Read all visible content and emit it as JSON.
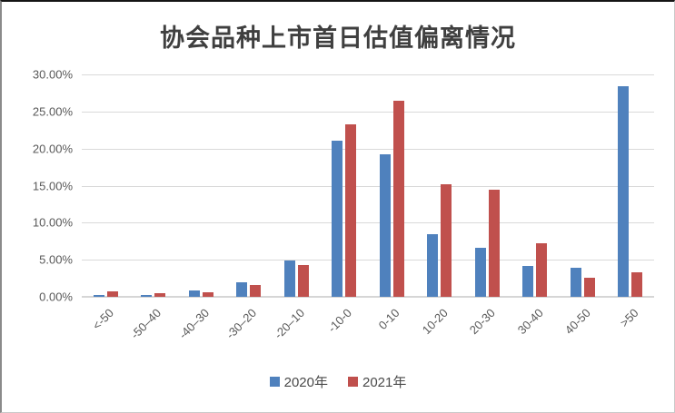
{
  "chart_data": {
    "type": "bar",
    "title": "协会品种上市首日估值偏离情况",
    "categories": [
      "<-50",
      "-50–40",
      "-40–30",
      "-30–20",
      "-20–10",
      "-10-0",
      "0-10",
      "10-20",
      "20-30",
      "30-40",
      "40-50",
      ">50"
    ],
    "series": [
      {
        "name": "2020年",
        "color": "#4F81BD",
        "values": [
          0.3,
          0.3,
          0.9,
          1.9,
          4.9,
          21.1,
          19.2,
          8.4,
          6.6,
          4.2,
          3.9,
          28.4
        ]
      },
      {
        "name": "2021年",
        "color": "#C0504D",
        "values": [
          0.7,
          0.5,
          0.6,
          1.6,
          4.3,
          23.3,
          26.4,
          15.2,
          14.5,
          7.2,
          2.6,
          3.3
        ]
      }
    ],
    "ylim": [
      0,
      30
    ],
    "ytick_step": 5,
    "ytick_labels": [
      "0.00%",
      "5.00%",
      "10.00%",
      "15.00%",
      "20.00%",
      "25.00%",
      "30.00%"
    ],
    "grid": true,
    "legend_position": "bottom",
    "colors": {
      "gridline": "#d9d9d9",
      "tick_text": "#595959",
      "title_text": "#3f3f3f",
      "series_2020": "#4F81BD",
      "series_2021": "#C0504D"
    }
  }
}
